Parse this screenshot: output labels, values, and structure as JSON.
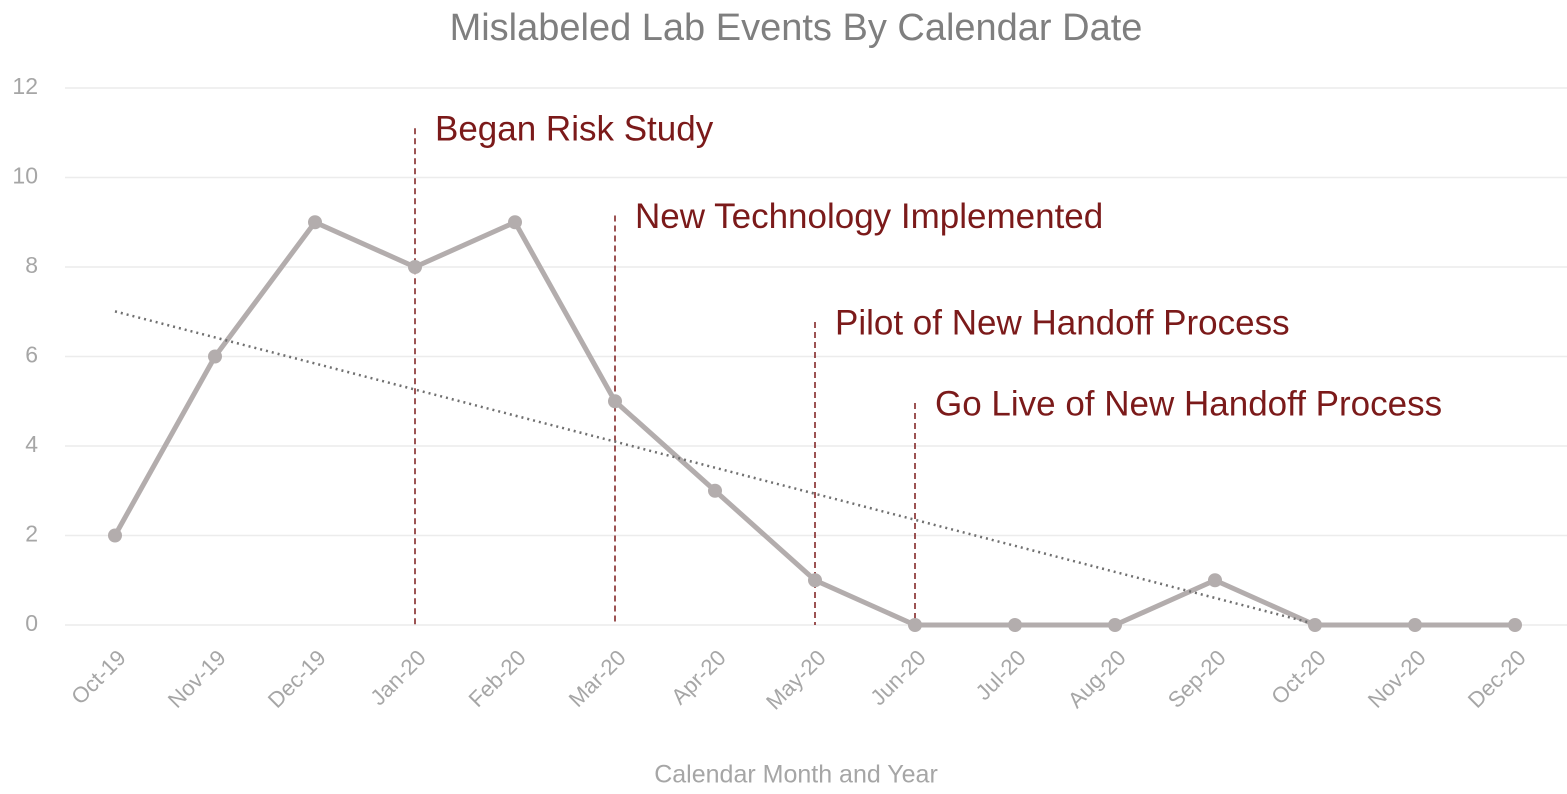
{
  "chart_data": {
    "type": "line",
    "title": "Mislabeled Lab Events By Calendar Date",
    "x_label": "Calendar Month and Year",
    "categories": [
      "Oct-19",
      "Nov-19",
      "Dec-19",
      "Jan-20",
      "Feb-20",
      "Mar-20",
      "Apr-20",
      "May-20",
      "Jun-20",
      "Jul-20",
      "Aug-20",
      "Sep-20",
      "Oct-20",
      "Nov-20",
      "Dec-20"
    ],
    "series": [
      {
        "color": "#b3adad",
        "values": [
          2,
          6,
          9,
          8,
          9,
          5,
          3,
          1,
          0,
          0,
          0,
          1,
          0,
          0,
          0
        ]
      }
    ],
    "ylim": [
      0,
      12
    ],
    "yticks": [
      0,
      2,
      4,
      6,
      8,
      10,
      12
    ],
    "grid": true,
    "trendline": "linear",
    "trendline_color": "#707070",
    "annotation_color": "#7b1a1a",
    "annotations": [
      {
        "text": "Began Risk Study",
        "x": "Jan-20",
        "y": 11.1
      },
      {
        "text": "New Technology Implemented",
        "x": "Mar-20",
        "y": 9.15
      },
      {
        "text": "Pilot of New Handoff Process",
        "x": "May-20",
        "y": 6.77
      },
      {
        "text": "Go Live of New Handoff Process",
        "x": "Jun-20",
        "y": 4.96
      }
    ]
  }
}
